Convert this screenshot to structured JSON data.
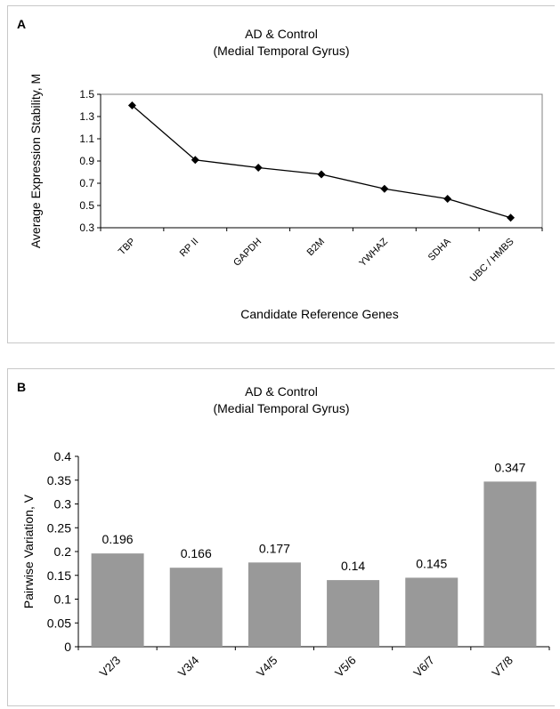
{
  "chart_data": [
    {
      "panel": "A",
      "type": "line",
      "title": "AD & Control",
      "subtitle": "(Medial Temporal Gyrus)",
      "xlabel": "Candidate Reference Genes",
      "ylabel": "Average Expression Stability, M",
      "categories": [
        "TBP",
        "RP II",
        "GAPDH",
        "B2M",
        "YWHAZ",
        "SDHA",
        "UBC / HMBS"
      ],
      "values": [
        1.4,
        0.91,
        0.84,
        0.78,
        0.65,
        0.56,
        0.39
      ],
      "ylim": [
        0.3,
        1.5
      ],
      "yticks": [
        "0.3",
        "0.5",
        "0.7",
        "0.9",
        "1.1",
        "1.3",
        "1.5"
      ],
      "grid": false,
      "legend": "none",
      "color": "#000000"
    },
    {
      "panel": "B",
      "type": "bar",
      "title": "AD & Control",
      "subtitle": "(Medial Temporal Gyrus)",
      "xlabel": "",
      "ylabel": "Pairwise Variation, V",
      "categories": [
        "V2/3",
        "V3/4",
        "V4/5",
        "V5/6",
        "V6/7",
        "V7/8"
      ],
      "values": [
        0.196,
        0.166,
        0.177,
        0.14,
        0.145,
        0.347
      ],
      "data_labels": [
        "0.196",
        "0.166",
        "0.177",
        "0.14",
        "0.145",
        "0.347"
      ],
      "ylim": [
        0,
        0.4
      ],
      "yticks": [
        "0",
        "0.05",
        "0.1",
        "0.15",
        "0.2",
        "0.25",
        "0.3",
        "0.35",
        "0.4"
      ],
      "grid": false,
      "legend": "none",
      "color": "#999999"
    }
  ]
}
